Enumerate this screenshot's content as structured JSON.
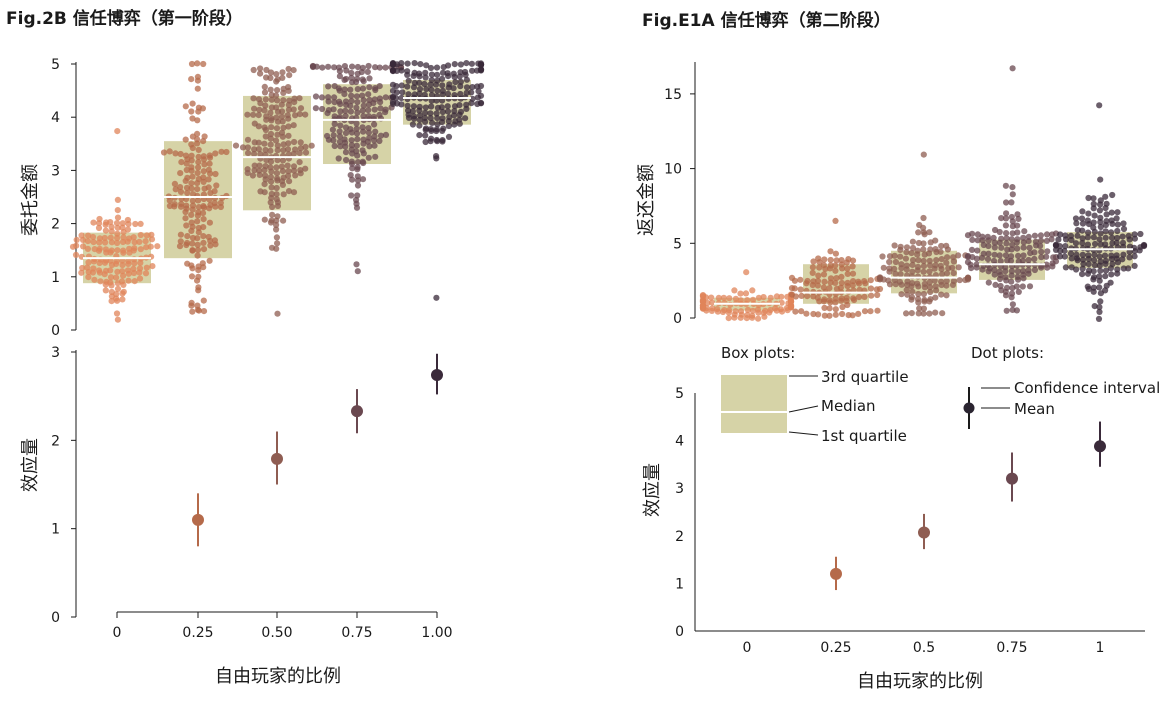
{
  "colors": {
    "box_fill": "#d6d3a7",
    "median_line": "#ffffff",
    "p0": "#e0845a",
    "p025": "#b56a4a",
    "p050": "#8f5d52",
    "p075": "#6a4850",
    "p100": "#3a2a3a"
  },
  "chart_data": [
    {
      "id": "fig2b-top",
      "type": "scatter",
      "title": "Fig.2B 信任博弈（第一阶段）",
      "ylabel": "委托金额",
      "ylim": [
        0,
        5
      ],
      "yticks": [
        "0",
        "1",
        "2",
        "3",
        "4",
        "5"
      ],
      "x": [
        0,
        0.25,
        0.5,
        0.75,
        1.0
      ],
      "boxes": [
        {
          "q1": 0.88,
          "median": 1.35,
          "q3": 1.83
        },
        {
          "q1": 1.35,
          "median": 2.5,
          "q3": 3.55
        },
        {
          "q1": 2.25,
          "median": 3.25,
          "q3": 4.4
        },
        {
          "q1": 3.12,
          "median": 3.95,
          "q3": 4.62
        },
        {
          "q1": 3.86,
          "median": 4.36,
          "q3": 4.7
        }
      ],
      "dots": [
        {
          "n": 150,
          "min": 0.2,
          "max": 3.75,
          "center": 1.4,
          "spread": 0.55
        },
        {
          "n": 170,
          "min": 0.35,
          "max": 5.0,
          "center": 2.5,
          "spread": 1.3
        },
        {
          "n": 190,
          "min": 0.3,
          "max": 4.9,
          "center": 3.4,
          "spread": 1.2
        },
        {
          "n": 185,
          "min": 1.1,
          "max": 4.95,
          "center": 3.95,
          "spread": 0.9
        },
        {
          "n": 200,
          "min": 0.6,
          "max": 5.0,
          "center": 4.4,
          "spread": 0.6
        }
      ]
    },
    {
      "id": "fig2b-bottom",
      "type": "scatter",
      "ylabel": "效应量",
      "xlabel": "自由玩家的比例",
      "ylim": [
        0,
        3
      ],
      "yticks": [
        "0",
        "1",
        "2",
        "3"
      ],
      "xticks": [
        "0",
        "0.25",
        "0.50",
        "0.75",
        "1.00"
      ],
      "x": [
        0.25,
        0.5,
        0.75,
        1.0
      ],
      "mean": [
        1.1,
        1.79,
        2.33,
        2.74
      ],
      "ci_low": [
        0.8,
        1.5,
        2.08,
        2.52
      ],
      "ci_high": [
        1.4,
        2.1,
        2.58,
        2.98
      ]
    },
    {
      "id": "fige1a-top",
      "type": "scatter",
      "title": "Fig.E1A 信任博弈（第二阶段）",
      "ylabel": "返还金额",
      "ylim": [
        0,
        17
      ],
      "yticks": [
        "0",
        "5",
        "10",
        "15"
      ],
      "x": [
        0,
        0.25,
        0.5,
        0.75,
        1
      ],
      "boxes": [
        {
          "q1": 0.5,
          "median": 0.95,
          "q3": 1.35
        },
        {
          "q1": 0.95,
          "median": 1.7,
          "q3": 3.6
        },
        {
          "q1": 1.65,
          "median": 2.7,
          "q3": 4.5
        },
        {
          "q1": 2.55,
          "median": 3.6,
          "q3": 5.25
        },
        {
          "q1": 3.35,
          "median": 4.6,
          "q3": 5.75
        }
      ],
      "dots": [
        {
          "n": 110,
          "min": 0.0,
          "max": 3.1,
          "center": 0.9,
          "spread": 0.6
        },
        {
          "n": 120,
          "min": 0.2,
          "max": 6.5,
          "center": 2.0,
          "spread": 1.5
        },
        {
          "n": 150,
          "min": 0.3,
          "max": 10.9,
          "center": 3.0,
          "spread": 1.8
        },
        {
          "n": 160,
          "min": 0.5,
          "max": 16.7,
          "center": 4.0,
          "spread": 2.2
        },
        {
          "n": 170,
          "min": 0.0,
          "max": 14.2,
          "center": 4.6,
          "spread": 2.2
        }
      ]
    },
    {
      "id": "fige1a-bottom",
      "type": "scatter",
      "ylabel": "效应量",
      "xlabel": "自由玩家的比例",
      "ylim": [
        0,
        5
      ],
      "yticks": [
        "0",
        "1",
        "2",
        "3",
        "4",
        "5"
      ],
      "xticks": [
        "0",
        "0.25",
        "0.5",
        "0.75",
        "1"
      ],
      "x": [
        0.25,
        0.5,
        0.75,
        1
      ],
      "mean": [
        1.2,
        2.07,
        3.2,
        3.88
      ],
      "ci_low": [
        0.86,
        1.72,
        2.72,
        3.45
      ],
      "ci_high": [
        1.56,
        2.46,
        3.75,
        4.4
      ]
    }
  ],
  "legend": {
    "box_title": "Box plots:",
    "dot_title": "Dot plots:",
    "q3": "3rd quartile",
    "median": "Median",
    "q1": "1st quartile",
    "ci": "Confidence interval",
    "mean": "Mean"
  }
}
